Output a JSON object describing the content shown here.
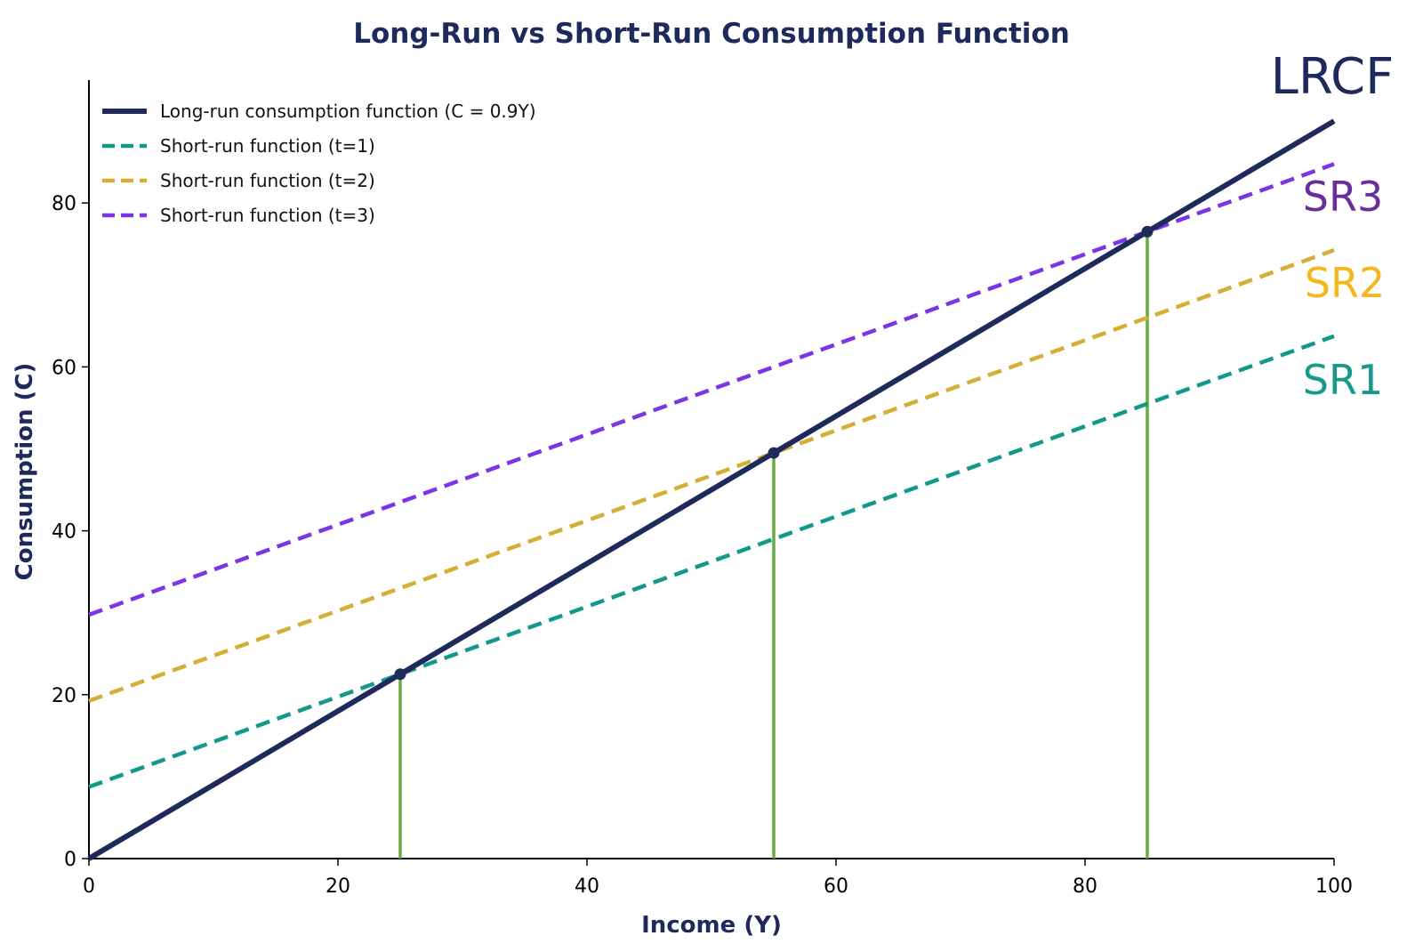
{
  "chart_data": {
    "type": "line",
    "title": "Long-Run vs Short-Run Consumption Function",
    "xlabel": "Income (Y)",
    "ylabel": "Consumption (C)",
    "xlim": [
      0,
      100
    ],
    "ylim": [
      0,
      95
    ],
    "x_ticks": [
      0,
      20,
      40,
      60,
      80,
      100
    ],
    "y_ticks": [
      0,
      20,
      40,
      60,
      80
    ],
    "grid": false,
    "legend_position": "top-left",
    "colors": {
      "text": "#1f2a5c",
      "lrcf": "#1f2a5c",
      "sr1": "#12998a",
      "sr2": "#d4ae35",
      "sr3": "#7b35e6",
      "drop_lines": "#6aaa3f",
      "sr3_label": "#6a2d9e",
      "sr2_label": "#f4b71c",
      "sr1_label": "#17998b"
    },
    "series": [
      {
        "name": "Long-run consumption function (C = 0.9Y)",
        "key": "lrcf",
        "style": "solid",
        "x": [
          0,
          100
        ],
        "y": [
          0,
          90
        ]
      },
      {
        "name": "Short-run function (t=1)",
        "key": "sr1",
        "style": "dashed",
        "x": [
          0,
          100
        ],
        "y": [
          8.75,
          63.75
        ]
      },
      {
        "name": "Short-run function (t=2)",
        "key": "sr2",
        "style": "dashed",
        "x": [
          0,
          100
        ],
        "y": [
          19.25,
          74.25
        ]
      },
      {
        "name": "Short-run function (t=3)",
        "key": "sr3",
        "style": "dashed",
        "x": [
          0,
          100
        ],
        "y": [
          29.75,
          84.75
        ]
      }
    ],
    "intersection_points": [
      {
        "x": 25,
        "y": 22.5
      },
      {
        "x": 55,
        "y": 49.5
      },
      {
        "x": 85,
        "y": 76.5
      }
    ],
    "curve_labels": [
      {
        "text": "LRCF",
        "key": "lrcf"
      },
      {
        "text": "SR3",
        "key": "sr3_label"
      },
      {
        "text": "SR2",
        "key": "sr2_label"
      },
      {
        "text": "SR1",
        "key": "sr1_label"
      }
    ]
  }
}
